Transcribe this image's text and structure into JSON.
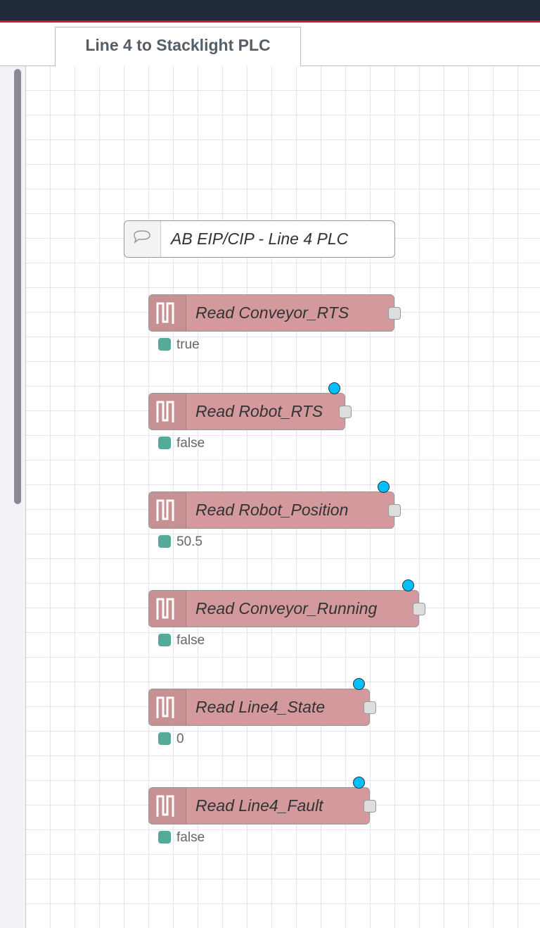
{
  "tab": {
    "title": "Line 4 to Stacklight PLC"
  },
  "comment": {
    "label": "AB EIP/CIP - Line 4 PLC"
  },
  "nodes": [
    {
      "label": "Read Conveyor_RTS",
      "status": "true"
    },
    {
      "label": "Read Robot_RTS",
      "status": "false"
    },
    {
      "label": "Read Robot_Position",
      "status": "50.5"
    },
    {
      "label": "Read Conveyor_Running",
      "status": "false"
    },
    {
      "label": "Read Line4_State",
      "status": "0"
    },
    {
      "label": "Read Line4_Fault",
      "status": "false"
    }
  ]
}
